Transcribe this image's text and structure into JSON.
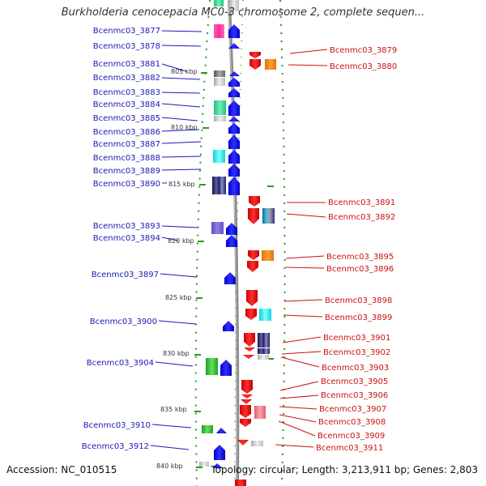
{
  "title": "Burkholderia cenocepacia MC0-3 chromosome 2, complete sequen...",
  "accession": "Accession: NC_010515",
  "topology": "Topology: circular; Length: 3,213,911 bp; Genes: 2,803",
  "colors": {
    "left_label": "#1a1ab8",
    "right_label": "#cc1111",
    "axis": "#999999",
    "ring": "#2a9a2a"
  },
  "ticks": [
    "805 kbp",
    "810 kbp",
    "815 kbp",
    "820 kbp",
    "825 kbp",
    "830 kbp",
    "835 kbp",
    "840 kbp"
  ],
  "left_genes": [
    "Bcenmc03_3877",
    "Bcenmc03_3878",
    "Bcenmc03_3881",
    "Bcenmc03_3882",
    "Bcenmc03_3883",
    "Bcenmc03_3884",
    "Bcenmc03_3885",
    "Bcenmc03_3886",
    "Bcenmc03_3887",
    "Bcenmc03_3888",
    "Bcenmc03_3889",
    "Bcenmc03_3890",
    "Bcenmc03_3893",
    "Bcenmc03_3894",
    "Bcenmc03_3897",
    "Bcenmc03_3900",
    "Bcenmc03_3904",
    "Bcenmc03_3910",
    "Bcenmc03_3912"
  ],
  "right_genes": [
    "Bcenmc03_3879",
    "Bcenmc03_3880",
    "Bcenmc03_3891",
    "Bcenmc03_3892",
    "Bcenmc03_3895",
    "Bcenmc03_3896",
    "Bcenmc03_3898",
    "Bcenmc03_3899",
    "Bcenmc03_3901",
    "Bcenmc03_3902",
    "Bcenmc03_3903",
    "Bcenmc03_3905",
    "Bcenmc03_3906",
    "Bcenmc03_3907",
    "Bcenmc03_3908",
    "Bcenmc03_3909",
    "Bcenmc03_3911"
  ]
}
